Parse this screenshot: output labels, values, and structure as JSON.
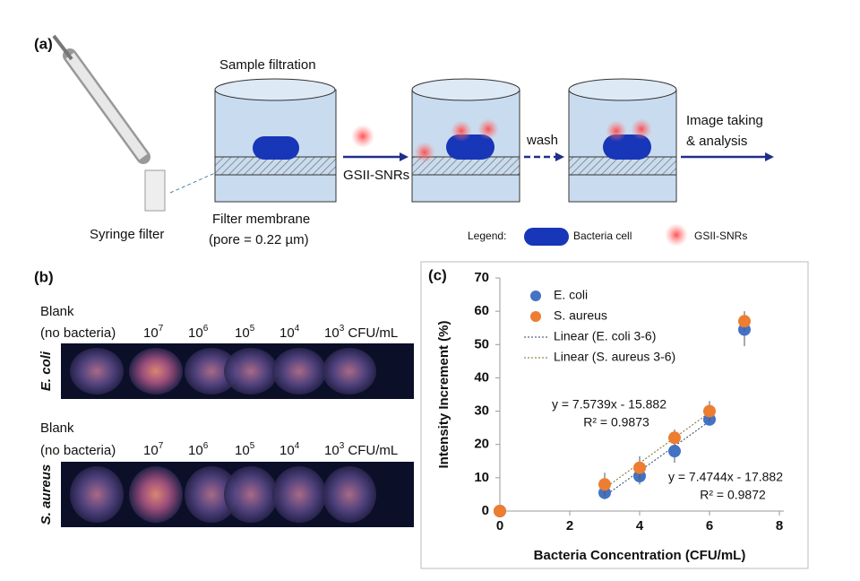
{
  "panel_a": {
    "label": "(a)",
    "step_title": "Sample filtration",
    "syringe": "Syringe filter",
    "membrane": "Filter membrane",
    "pore": "(pore = 0.22 µm)",
    "probe": "GSII-SNRs",
    "wash": "wash",
    "final_1": "Image taking",
    "final_2": "& analysis",
    "legend": {
      "title": "Legend:",
      "cell": "Bacteria cell",
      "probe": "GSII-SNRs"
    }
  },
  "panel_b": {
    "label": "(b)",
    "rows": [
      {
        "name": "E. coli",
        "blank_1": "Blank",
        "blank_2": "(no bacteria)",
        "concentrations": [
          {
            "base": "10",
            "exp": "7"
          },
          {
            "base": "10",
            "exp": "6"
          },
          {
            "base": "10",
            "exp": "5"
          },
          {
            "base": "10",
            "exp": "4"
          },
          {
            "base": "10",
            "exp": "3"
          }
        ],
        "unit": "CFU/mL"
      },
      {
        "name": "S. aureus",
        "blank_1": "Blank",
        "blank_2": "(no bacteria)",
        "concentrations": [
          {
            "base": "10",
            "exp": "7"
          },
          {
            "base": "10",
            "exp": "6"
          },
          {
            "base": "10",
            "exp": "5"
          },
          {
            "base": "10",
            "exp": "4"
          },
          {
            "base": "10",
            "exp": "3"
          }
        ],
        "unit": "CFU/mL"
      }
    ]
  },
  "chart_data": {
    "type": "scatter",
    "label": "(c)",
    "x_label": "Bacteria Concentration (CFU/mL)",
    "y_label": "Intensity Increment (%)",
    "xlim": [
      0,
      8
    ],
    "xticks": [
      0,
      2,
      4,
      6,
      8
    ],
    "ylim": [
      0,
      70
    ],
    "yticks": [
      0,
      10,
      20,
      30,
      40,
      50,
      60,
      70
    ],
    "series": [
      {
        "name": "E. coli",
        "color": "#4472c4",
        "x": [
          0,
          3,
          4,
          5,
          6,
          7
        ],
        "values": [
          0,
          5.5,
          10.5,
          18,
          27.5,
          54.5
        ],
        "errors": [
          0,
          2,
          2.5,
          3.5,
          1,
          5
        ]
      },
      {
        "name": "S. aureus",
        "color": "#ed7d31",
        "x": [
          0,
          3,
          4,
          5,
          6,
          7
        ],
        "values": [
          0,
          8,
          13,
          22,
          30,
          57
        ],
        "errors": [
          0,
          3.5,
          3.5,
          2.5,
          3,
          3
        ]
      }
    ],
    "trendlines": [
      {
        "name": "Linear (E. coli 3-6)",
        "color": "#2f3f5f",
        "x": [
          3,
          6
        ],
        "values": [
          4.54,
          26.96
        ],
        "equation": "y = 7.4744x - 17.882",
        "r2": "R² = 0.9872"
      },
      {
        "name": "Linear (S. aureus 3-6)",
        "color": "#7a6a2a",
        "x": [
          3,
          6
        ],
        "values": [
          6.84,
          29.56
        ],
        "equation": "y = 7.5739x - 15.882",
        "r2": "R² = 0.9873"
      }
    ]
  }
}
